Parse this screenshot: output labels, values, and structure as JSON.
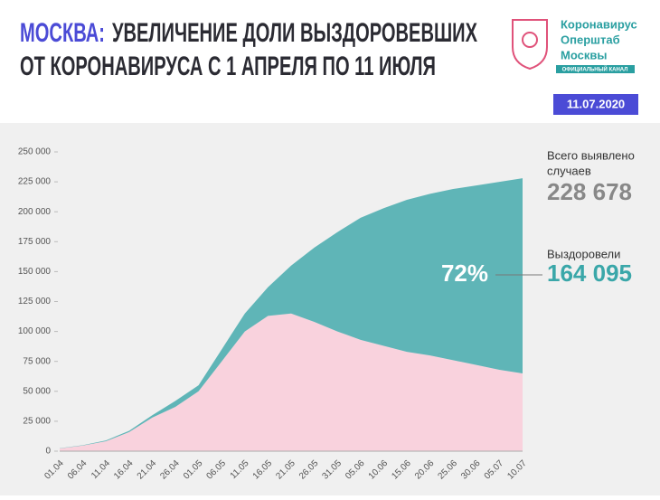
{
  "header": {
    "title_city": "МОСКВА:",
    "title_rest": "УВЕЛИЧЕНИЕ ДОЛИ ВЫЗДОРОВЕВШИХ",
    "title_line2": "ОТ КОРОНАВИРУСА С 1 АПРЕЛЯ ПО 11 ИЮЛЯ",
    "logo_lines": [
      "Коронавирус",
      "Оперштаб",
      "Москвы"
    ],
    "logo_badge": "ОФИЦИАЛЬНЫЙ КАНАЛ",
    "date": "11.07.2020"
  },
  "chart_data": {
    "type": "stacked_area",
    "categories": [
      "01.04",
      "06.04",
      "11.04",
      "16.04",
      "21.04",
      "26.04",
      "01.05",
      "06.05",
      "11.05",
      "16.05",
      "21.05",
      "26.05",
      "31.05",
      "05.06",
      "10.06",
      "15.06",
      "20.06",
      "25.06",
      "30.06",
      "05.07",
      "10.07"
    ],
    "series": [
      {
        "color": "#f9d2dd",
        "values": [
          2300,
          4700,
          8300,
          16000,
          28000,
          37000,
          50000,
          75000,
          100000,
          113000,
          115000,
          108000,
          100000,
          93000,
          88000,
          83000,
          80000,
          76000,
          72000,
          68000,
          65000
        ]
      },
      {
        "color": "#5fb5b7",
        "values": [
          200,
          300,
          700,
          1000,
          2000,
          5000,
          5000,
          10000,
          15000,
          24000,
          40000,
          62000,
          83000,
          102000,
          115000,
          127000,
          135000,
          143000,
          150000,
          157000,
          163000
        ]
      }
    ],
    "ylim": [
      0,
      250000
    ],
    "yticks": [
      0,
      {
        "value": 25000,
        "label": "25 000"
      },
      {
        "value": 50000,
        "label": "50 000"
      },
      {
        "value": 75000,
        "label": "75 000"
      },
      {
        "value": 100000,
        "label": "100 000"
      },
      {
        "value": 125000,
        "label": "125 000"
      },
      {
        "value": 150000,
        "label": "150 000"
      },
      {
        "value": 175000,
        "label": "175 000"
      },
      {
        "value": 200000,
        "label": "200 000"
      },
      {
        "value": 225000,
        "label": "225 000"
      },
      {
        "value": 250000,
        "label": "250 000"
      }
    ],
    "annotations": {
      "total_label_1": "Всего выявлено",
      "total_label_2": "случаев",
      "total_value": "228 678",
      "recovered_label": "Выздоровели",
      "recovered_value": "164 095",
      "share": "72%"
    }
  }
}
